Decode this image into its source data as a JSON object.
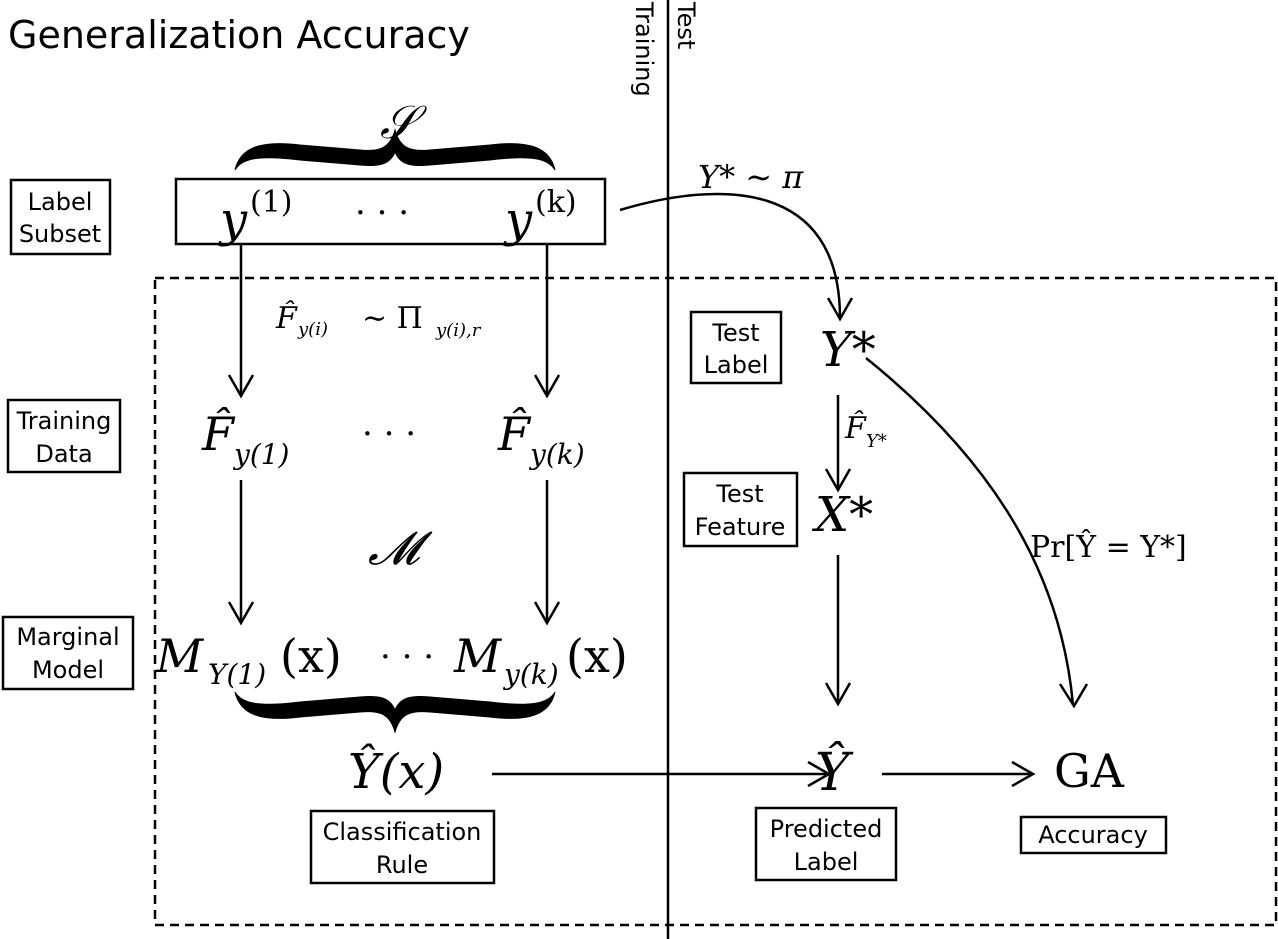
{
  "title": "Generalization Accuracy",
  "divider": {
    "training_label": "Training",
    "test_label": "Test"
  },
  "row_labels": {
    "label_subset": [
      "Label",
      "Subset"
    ],
    "training_data": [
      "Training",
      "Data"
    ],
    "marginal_model": [
      "Marginal",
      "Model"
    ],
    "test_label": [
      "Test",
      "Label"
    ],
    "test_feature": [
      "Test",
      "Feature"
    ],
    "classification_rule": [
      "Classification",
      "Rule"
    ],
    "predicted_label": [
      "Predicted",
      "Label"
    ],
    "accuracy": "Accuracy"
  },
  "math": {
    "S": "𝒮",
    "y1": "y",
    "y1_sup": "(1)",
    "yk": "y",
    "yk_sup": "(k)",
    "dots": "· · ·",
    "sampling": "F̂",
    "sampling_sub": "y(i)",
    "sampling_rest": "∼ Π",
    "sampling_rest_sub": "y(i),r",
    "F1": "F̂",
    "F1_sub": "y(1)",
    "Fk": "F̂",
    "Fk_sub": "y(k)",
    "M": "𝓜",
    "M1": "M",
    "M1_sub": "Y(1)",
    "M1_arg": "(x)",
    "Mk": "M",
    "Mk_sub": "y(k)",
    "Mk_arg": "(x)",
    "Yhat_x": "Ŷ(x)",
    "Ystar_pi": "Y* ∼ π",
    "Ystar": "Y*",
    "FY": "F̂",
    "FY_sub": "Y*",
    "Xstar": "X*",
    "Yhat": "Ŷ",
    "GA": "GA",
    "Pr": "Pr[Ŷ = Y*]"
  }
}
